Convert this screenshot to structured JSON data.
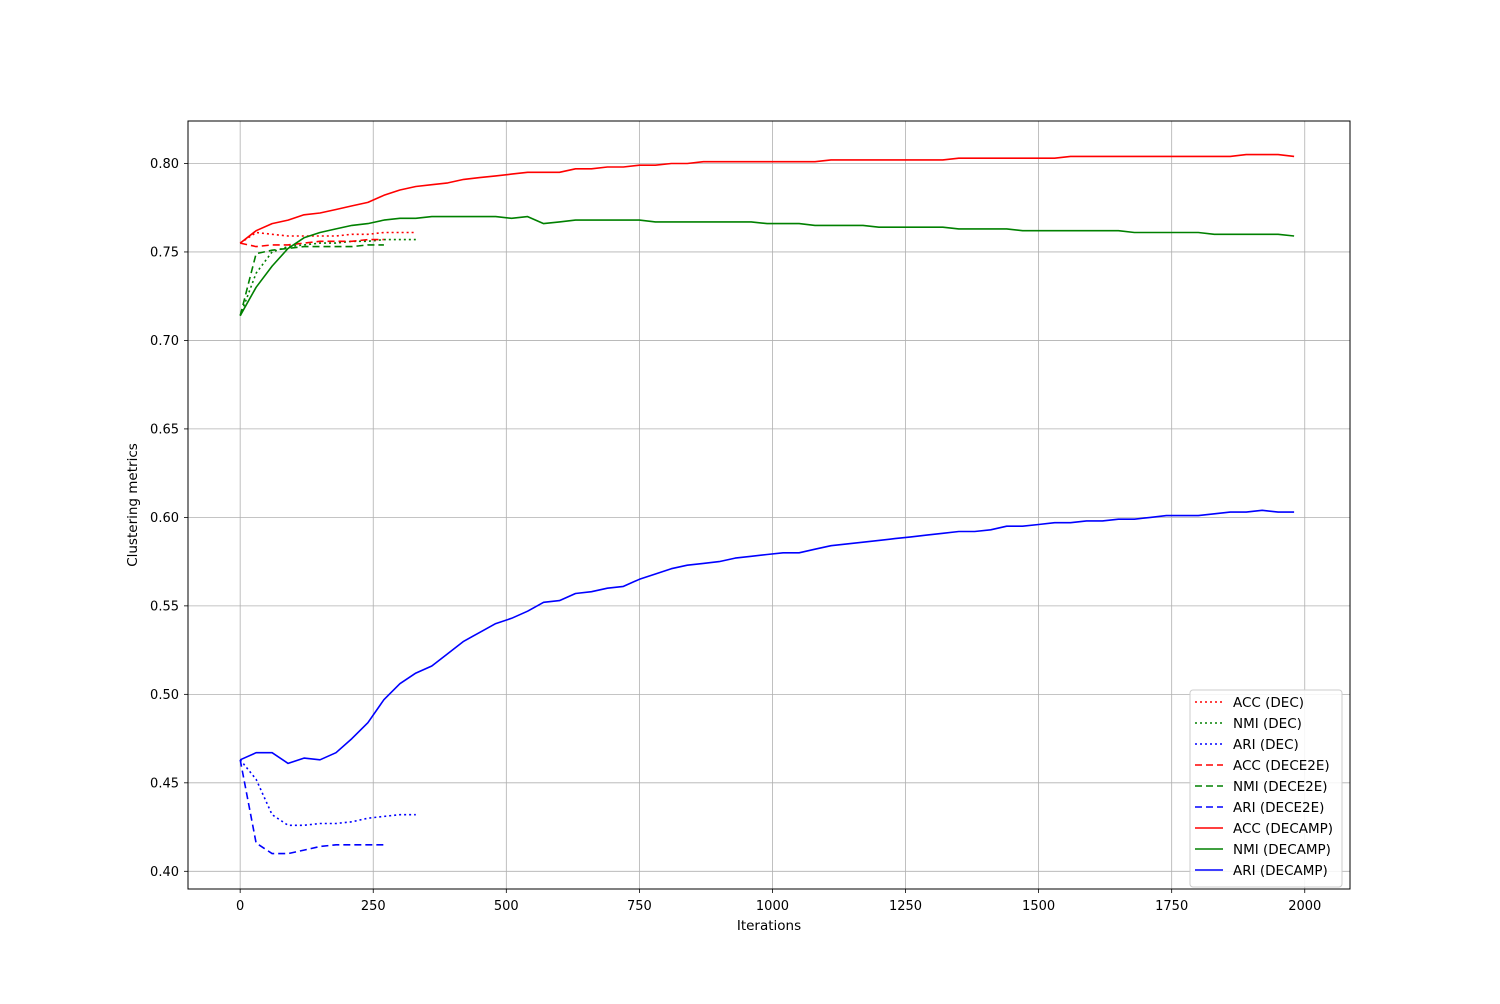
{
  "chart_data": {
    "type": "line",
    "xlabel": "Iterations",
    "ylabel": "Clustering metrics",
    "xlim": [
      -98,
      2085
    ],
    "ylim": [
      0.39,
      0.824
    ],
    "x_ticks": [
      0,
      250,
      500,
      750,
      1000,
      1250,
      1500,
      1750,
      2000
    ],
    "x_tick_labels": [
      "0",
      "250",
      "500",
      "750",
      "1000",
      "1250",
      "1500",
      "1750",
      "2000"
    ],
    "y_ticks": [
      0.4,
      0.45,
      0.5,
      0.55,
      0.6,
      0.65,
      0.7,
      0.75,
      0.8
    ],
    "y_tick_labels": [
      "0.40",
      "0.45",
      "0.50",
      "0.55",
      "0.60",
      "0.65",
      "0.70",
      "0.75",
      "0.80"
    ],
    "grid": true,
    "legend_position": "lower-right",
    "series": [
      {
        "name": "ACC (DEC)",
        "color": "#ff0000",
        "style": "dotted",
        "x": [
          0,
          30,
          60,
          90,
          120,
          150,
          180,
          210,
          240,
          270,
          300,
          330
        ],
        "y": [
          0.755,
          0.761,
          0.76,
          0.759,
          0.759,
          0.759,
          0.759,
          0.76,
          0.76,
          0.761,
          0.761,
          0.761
        ]
      },
      {
        "name": "NMI (DEC)",
        "color": "#008000",
        "style": "dotted",
        "x": [
          0,
          30,
          60,
          90,
          120,
          150,
          180,
          210,
          240,
          270,
          300,
          330
        ],
        "y": [
          0.714,
          0.738,
          0.75,
          0.753,
          0.754,
          0.755,
          0.755,
          0.756,
          0.756,
          0.757,
          0.757,
          0.757
        ]
      },
      {
        "name": "ARI (DEC)",
        "color": "#0000ff",
        "style": "dotted",
        "x": [
          0,
          30,
          60,
          90,
          120,
          150,
          180,
          210,
          240,
          270,
          300,
          330
        ],
        "y": [
          0.463,
          0.452,
          0.432,
          0.426,
          0.426,
          0.427,
          0.427,
          0.428,
          0.43,
          0.431,
          0.432,
          0.432
        ]
      },
      {
        "name": "ACC (DECE2E)",
        "color": "#ff0000",
        "style": "dashed",
        "x": [
          0,
          30,
          60,
          90,
          120,
          150,
          180,
          210,
          240,
          270
        ],
        "y": [
          0.755,
          0.753,
          0.754,
          0.754,
          0.755,
          0.756,
          0.756,
          0.756,
          0.757,
          0.757
        ]
      },
      {
        "name": "NMI (DECE2E)",
        "color": "#008000",
        "style": "dashed",
        "x": [
          0,
          30,
          60,
          90,
          120,
          150,
          180,
          210,
          240,
          270
        ],
        "y": [
          0.714,
          0.749,
          0.751,
          0.752,
          0.753,
          0.753,
          0.753,
          0.753,
          0.754,
          0.754
        ]
      },
      {
        "name": "ARI (DECE2E)",
        "color": "#0000ff",
        "style": "dashed",
        "x": [
          0,
          30,
          60,
          90,
          120,
          150,
          180,
          210,
          240,
          270
        ],
        "y": [
          0.463,
          0.416,
          0.41,
          0.41,
          0.412,
          0.414,
          0.415,
          0.415,
          0.415,
          0.415
        ]
      },
      {
        "name": "ACC (DECAMP)",
        "color": "#ff0000",
        "style": "solid",
        "x": [
          0,
          30,
          60,
          90,
          120,
          150,
          180,
          210,
          240,
          270,
          300,
          330,
          360,
          390,
          420,
          450,
          480,
          510,
          540,
          570,
          600,
          630,
          660,
          690,
          720,
          750,
          780,
          810,
          840,
          870,
          900,
          930,
          960,
          990,
          1020,
          1050,
          1080,
          1110,
          1140,
          1170,
          1200,
          1230,
          1260,
          1290,
          1320,
          1350,
          1380,
          1410,
          1440,
          1470,
          1500,
          1530,
          1560,
          1590,
          1620,
          1650,
          1680,
          1710,
          1740,
          1770,
          1800,
          1830,
          1860,
          1890,
          1920,
          1950,
          1980
        ],
        "y": [
          0.755,
          0.762,
          0.766,
          0.768,
          0.771,
          0.772,
          0.774,
          0.776,
          0.778,
          0.782,
          0.785,
          0.787,
          0.788,
          0.789,
          0.791,
          0.792,
          0.793,
          0.794,
          0.795,
          0.795,
          0.795,
          0.797,
          0.797,
          0.798,
          0.798,
          0.799,
          0.799,
          0.8,
          0.8,
          0.801,
          0.801,
          0.801,
          0.801,
          0.801,
          0.801,
          0.801,
          0.801,
          0.802,
          0.802,
          0.802,
          0.802,
          0.802,
          0.802,
          0.802,
          0.802,
          0.803,
          0.803,
          0.803,
          0.803,
          0.803,
          0.803,
          0.803,
          0.804,
          0.804,
          0.804,
          0.804,
          0.804,
          0.804,
          0.804,
          0.804,
          0.804,
          0.804,
          0.804,
          0.805,
          0.805,
          0.805,
          0.804
        ]
      },
      {
        "name": "NMI (DECAMP)",
        "color": "#008000",
        "style": "solid",
        "x": [
          0,
          30,
          60,
          90,
          120,
          150,
          180,
          210,
          240,
          270,
          300,
          330,
          360,
          390,
          420,
          450,
          480,
          510,
          540,
          570,
          600,
          630,
          660,
          690,
          720,
          750,
          780,
          810,
          840,
          870,
          900,
          930,
          960,
          990,
          1020,
          1050,
          1080,
          1110,
          1140,
          1170,
          1200,
          1230,
          1260,
          1290,
          1320,
          1350,
          1380,
          1410,
          1440,
          1470,
          1500,
          1530,
          1560,
          1590,
          1620,
          1650,
          1680,
          1710,
          1740,
          1770,
          1800,
          1830,
          1860,
          1890,
          1920,
          1950,
          1980
        ],
        "y": [
          0.714,
          0.73,
          0.742,
          0.752,
          0.758,
          0.761,
          0.763,
          0.765,
          0.766,
          0.768,
          0.769,
          0.769,
          0.77,
          0.77,
          0.77,
          0.77,
          0.77,
          0.769,
          0.77,
          0.766,
          0.767,
          0.768,
          0.768,
          0.768,
          0.768,
          0.768,
          0.767,
          0.767,
          0.767,
          0.767,
          0.767,
          0.767,
          0.767,
          0.766,
          0.766,
          0.766,
          0.765,
          0.765,
          0.765,
          0.765,
          0.764,
          0.764,
          0.764,
          0.764,
          0.764,
          0.763,
          0.763,
          0.763,
          0.763,
          0.762,
          0.762,
          0.762,
          0.762,
          0.762,
          0.762,
          0.762,
          0.761,
          0.761,
          0.761,
          0.761,
          0.761,
          0.76,
          0.76,
          0.76,
          0.76,
          0.76,
          0.759
        ]
      },
      {
        "name": "ARI (DECAMP)",
        "color": "#0000ff",
        "style": "solid",
        "x": [
          0,
          30,
          60,
          90,
          120,
          150,
          180,
          210,
          240,
          270,
          300,
          330,
          360,
          390,
          420,
          450,
          480,
          510,
          540,
          570,
          600,
          630,
          660,
          690,
          720,
          750,
          780,
          810,
          840,
          870,
          900,
          930,
          960,
          990,
          1020,
          1050,
          1080,
          1110,
          1140,
          1170,
          1200,
          1230,
          1260,
          1290,
          1320,
          1350,
          1380,
          1410,
          1440,
          1470,
          1500,
          1530,
          1560,
          1590,
          1620,
          1650,
          1680,
          1710,
          1740,
          1770,
          1800,
          1830,
          1860,
          1890,
          1920,
          1950,
          1980
        ],
        "y": [
          0.463,
          0.467,
          0.467,
          0.461,
          0.464,
          0.463,
          0.467,
          0.475,
          0.484,
          0.497,
          0.506,
          0.512,
          0.516,
          0.523,
          0.53,
          0.535,
          0.54,
          0.543,
          0.547,
          0.552,
          0.553,
          0.557,
          0.558,
          0.56,
          0.561,
          0.565,
          0.568,
          0.571,
          0.573,
          0.574,
          0.575,
          0.577,
          0.578,
          0.579,
          0.58,
          0.58,
          0.582,
          0.584,
          0.585,
          0.586,
          0.587,
          0.588,
          0.589,
          0.59,
          0.591,
          0.592,
          0.592,
          0.593,
          0.595,
          0.595,
          0.596,
          0.597,
          0.597,
          0.598,
          0.598,
          0.599,
          0.599,
          0.6,
          0.601,
          0.601,
          0.601,
          0.602,
          0.603,
          0.603,
          0.604,
          0.603,
          0.603
        ]
      }
    ]
  }
}
